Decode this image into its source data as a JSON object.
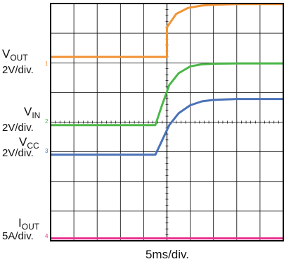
{
  "chart_data": {
    "type": "line",
    "grid": true,
    "xlabel": "5ms/div.",
    "channels": [
      {
        "id": "vout",
        "name_main": "V",
        "name_sub": "OUT",
        "scale": "2V/div.",
        "color": "#f39333",
        "marker": "1"
      },
      {
        "id": "vin",
        "name_main": "V",
        "name_sub": "IN",
        "scale": "2V/div.",
        "color": "#4cb848",
        "marker": "2"
      },
      {
        "id": "vcc",
        "name_main": "V",
        "name_sub": "CC",
        "scale": "2V/div.",
        "color": "#4a72b8",
        "marker": "3"
      },
      {
        "id": "iout",
        "name_main": "I",
        "name_sub": "OUT",
        "scale": "5A/div.",
        "color": "#e8318c",
        "marker": "4"
      }
    ],
    "x_divisions": 10,
    "y_divisions": 8,
    "trigger_division": 5,
    "series": [
      {
        "channel": "vout",
        "x": [
          0,
          5,
          5,
          5.4,
          5.9,
          6.5,
          7,
          8,
          9,
          10
        ],
        "y": [
          6.2,
          6.2,
          7.2,
          7.65,
          7.85,
          7.93,
          7.96,
          7.98,
          7.98,
          7.98
        ]
      },
      {
        "channel": "vin",
        "x": [
          0,
          4.5,
          4.8,
          5.1,
          5.5,
          6,
          6.5,
          7,
          8,
          10
        ],
        "y": [
          3.9,
          3.9,
          4.6,
          5.25,
          5.65,
          5.88,
          5.95,
          5.97,
          5.98,
          5.98
        ]
      },
      {
        "channel": "vcc",
        "x": [
          0,
          4.5,
          4.8,
          5.1,
          5.5,
          6,
          6.5,
          7,
          8,
          10
        ],
        "y": [
          2.9,
          2.9,
          3.4,
          3.9,
          4.3,
          4.57,
          4.7,
          4.75,
          4.78,
          4.78
        ]
      },
      {
        "channel": "iout",
        "x": [
          0,
          10
        ],
        "y": [
          0.08,
          0.08
        ]
      }
    ]
  }
}
